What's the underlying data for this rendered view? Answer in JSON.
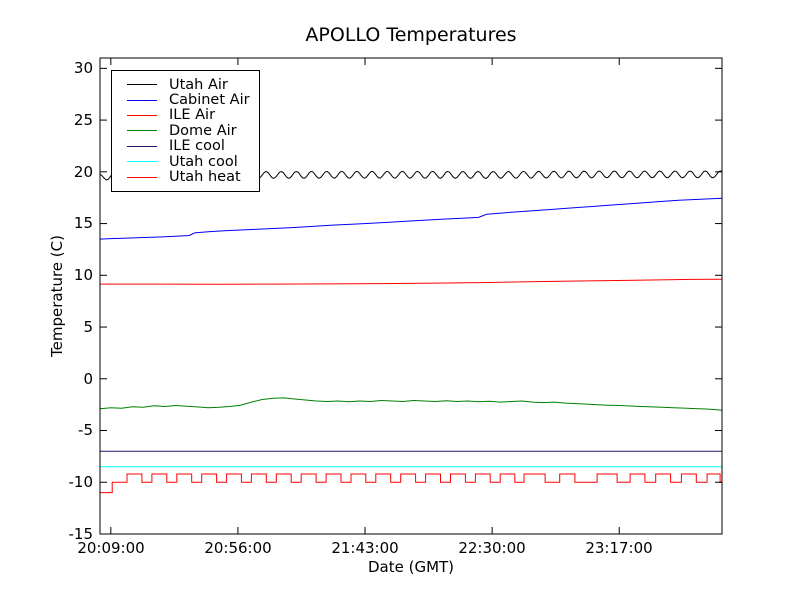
{
  "figure": {
    "title": "APOLLO Temperatures",
    "xlabel": "Date (GMT)",
    "ylabel": "Temperature (C)"
  },
  "chart_data": {
    "type": "line",
    "title": "APOLLO Temperatures",
    "xlabel": "Date (GMT)",
    "ylabel": "Temperature (C)",
    "grid": false,
    "legend_position": "upper left",
    "x_axis": {
      "unit": "minutes after 20:09:00 GMT",
      "xlim_minutes": [
        -4,
        226
      ],
      "tick_minutes": [
        0,
        47,
        94,
        141,
        188
      ],
      "tick_labels": [
        "20:09:00",
        "20:56:00",
        "21:43:00",
        "22:30:00",
        "23:17:00"
      ]
    },
    "y_axis": {
      "ylim": [
        -15,
        31
      ],
      "tick_values": [
        30,
        25,
        20,
        15,
        10,
        5,
        0,
        -5,
        -10,
        -15
      ]
    },
    "series": [
      {
        "name": "Utah Air",
        "color": "#000000",
        "shape": "wave",
        "period_minutes": 5.6,
        "amplitude": 0.33,
        "baseline": [
          [
            -4,
            19.45
          ],
          [
            0,
            19.6
          ],
          [
            20,
            19.68
          ],
          [
            60,
            19.7
          ],
          [
            100,
            19.72
          ],
          [
            140,
            19.7
          ],
          [
            180,
            19.75
          ],
          [
            226,
            19.75
          ]
        ]
      },
      {
        "name": "Cabinet Air",
        "color": "#0000ff",
        "shape": "line",
        "points": [
          [
            -4,
            13.5
          ],
          [
            0,
            13.55
          ],
          [
            6,
            13.6
          ],
          [
            12,
            13.65
          ],
          [
            18,
            13.7
          ],
          [
            24,
            13.78
          ],
          [
            29,
            13.85
          ],
          [
            31,
            14.1
          ],
          [
            36,
            14.2
          ],
          [
            42,
            14.3
          ],
          [
            50,
            14.4
          ],
          [
            58,
            14.5
          ],
          [
            66,
            14.6
          ],
          [
            74,
            14.72
          ],
          [
            82,
            14.85
          ],
          [
            90,
            14.95
          ],
          [
            98,
            15.05
          ],
          [
            106,
            15.18
          ],
          [
            114,
            15.3
          ],
          [
            122,
            15.42
          ],
          [
            130,
            15.52
          ],
          [
            136,
            15.6
          ],
          [
            139,
            15.9
          ],
          [
            146,
            16.05
          ],
          [
            154,
            16.2
          ],
          [
            162,
            16.35
          ],
          [
            170,
            16.5
          ],
          [
            178,
            16.65
          ],
          [
            186,
            16.8
          ],
          [
            194,
            16.95
          ],
          [
            202,
            17.1
          ],
          [
            210,
            17.25
          ],
          [
            218,
            17.35
          ],
          [
            226,
            17.45
          ]
        ]
      },
      {
        "name": "ILE Air",
        "color": "#ff0000",
        "shape": "line",
        "points": [
          [
            -4,
            9.15
          ],
          [
            20,
            9.15
          ],
          [
            40,
            9.13
          ],
          [
            60,
            9.15
          ],
          [
            80,
            9.17
          ],
          [
            100,
            9.2
          ],
          [
            120,
            9.25
          ],
          [
            140,
            9.3
          ],
          [
            160,
            9.4
          ],
          [
            180,
            9.47
          ],
          [
            200,
            9.55
          ],
          [
            215,
            9.6
          ],
          [
            226,
            9.62
          ]
        ]
      },
      {
        "name": "Dome Air",
        "color": "#008000",
        "shape": "line",
        "points": [
          [
            -4,
            -2.9
          ],
          [
            0,
            -2.8
          ],
          [
            4,
            -2.85
          ],
          [
            8,
            -2.7
          ],
          [
            12,
            -2.75
          ],
          [
            16,
            -2.6
          ],
          [
            20,
            -2.68
          ],
          [
            24,
            -2.58
          ],
          [
            28,
            -2.65
          ],
          [
            32,
            -2.72
          ],
          [
            36,
            -2.8
          ],
          [
            40,
            -2.75
          ],
          [
            44,
            -2.68
          ],
          [
            48,
            -2.55
          ],
          [
            52,
            -2.25
          ],
          [
            56,
            -2.0
          ],
          [
            60,
            -1.88
          ],
          [
            64,
            -1.85
          ],
          [
            68,
            -1.95
          ],
          [
            72,
            -2.05
          ],
          [
            76,
            -2.15
          ],
          [
            80,
            -2.2
          ],
          [
            84,
            -2.15
          ],
          [
            88,
            -2.22
          ],
          [
            92,
            -2.15
          ],
          [
            96,
            -2.2
          ],
          [
            100,
            -2.1
          ],
          [
            104,
            -2.15
          ],
          [
            108,
            -2.2
          ],
          [
            112,
            -2.1
          ],
          [
            116,
            -2.15
          ],
          [
            120,
            -2.2
          ],
          [
            124,
            -2.12
          ],
          [
            128,
            -2.2
          ],
          [
            132,
            -2.15
          ],
          [
            136,
            -2.22
          ],
          [
            140,
            -2.17
          ],
          [
            144,
            -2.25
          ],
          [
            148,
            -2.2
          ],
          [
            152,
            -2.15
          ],
          [
            156,
            -2.25
          ],
          [
            160,
            -2.3
          ],
          [
            164,
            -2.25
          ],
          [
            168,
            -2.35
          ],
          [
            172,
            -2.4
          ],
          [
            176,
            -2.45
          ],
          [
            180,
            -2.5
          ],
          [
            184,
            -2.55
          ],
          [
            188,
            -2.58
          ],
          [
            192,
            -2.63
          ],
          [
            196,
            -2.68
          ],
          [
            200,
            -2.72
          ],
          [
            204,
            -2.76
          ],
          [
            208,
            -2.8
          ],
          [
            212,
            -2.83
          ],
          [
            216,
            -2.88
          ],
          [
            220,
            -2.92
          ],
          [
            223,
            -2.97
          ],
          [
            226,
            -3.05
          ]
        ]
      },
      {
        "name": "ILE cool",
        "color": "#191970",
        "shape": "line",
        "points": [
          [
            -4,
            -7.0
          ],
          [
            226,
            -7.0
          ]
        ]
      },
      {
        "name": "Utah cool",
        "color": "#00ffff",
        "shape": "line",
        "points": [
          [
            -4,
            -8.5
          ],
          [
            226,
            -8.5
          ]
        ]
      },
      {
        "name": "Utah heat",
        "color": "#ff0000",
        "shape": "square",
        "initial_value": -11.0,
        "initial_until": 0.5,
        "low": -10.0,
        "high": -9.2,
        "high_intervals": [
          [
            6,
            11.5
          ],
          [
            15.2,
            20.7
          ],
          [
            24.4,
            29.9
          ],
          [
            33.6,
            39.1
          ],
          [
            42.8,
            48.3
          ],
          [
            52,
            57.5
          ],
          [
            61.2,
            66.7
          ],
          [
            70.4,
            75.9
          ],
          [
            79.6,
            85.1
          ],
          [
            88.8,
            94.3
          ],
          [
            98,
            103.5
          ],
          [
            107.2,
            112.7
          ],
          [
            116.4,
            121.9
          ],
          [
            125.6,
            131.1
          ],
          [
            134.8,
            140.3
          ],
          [
            144,
            149.4
          ],
          [
            152.8,
            160.6
          ],
          [
            166,
            171.6
          ],
          [
            179.8,
            187.2
          ],
          [
            192,
            197.5
          ],
          [
            201.5,
            207
          ],
          [
            211,
            216.5
          ],
          [
            220.5,
            225.3
          ]
        ]
      }
    ]
  }
}
